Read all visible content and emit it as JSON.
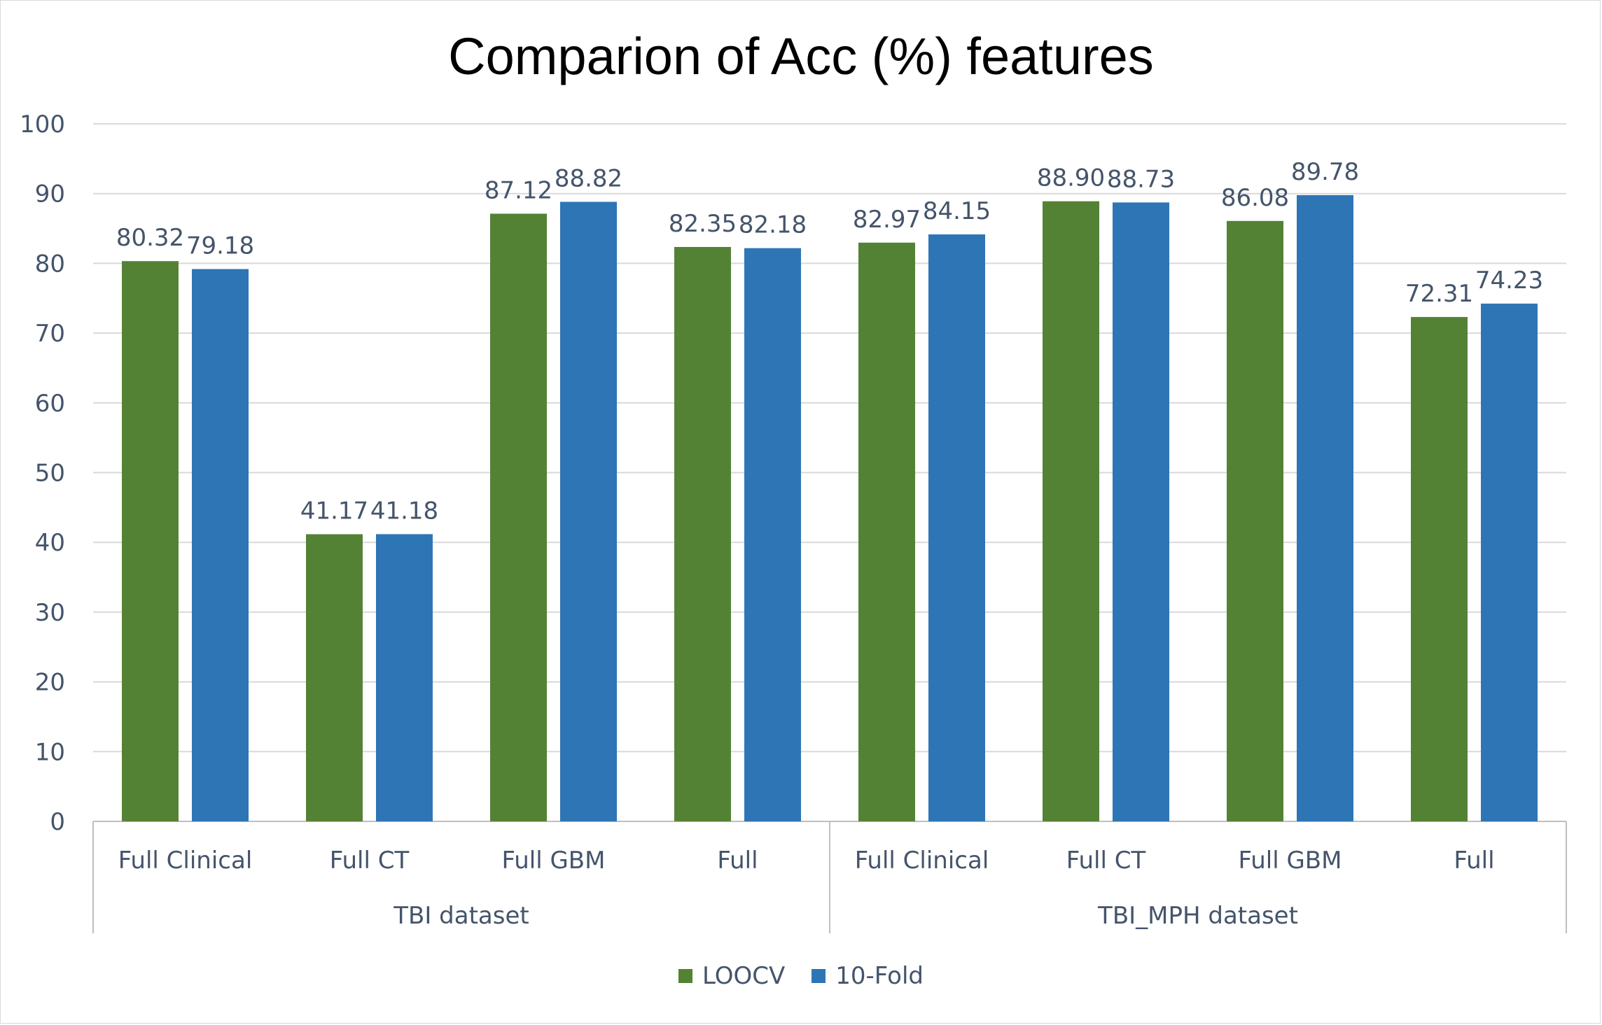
{
  "chart_data": {
    "type": "bar",
    "title": "Comparion of Acc (%) features",
    "groups": [
      {
        "label": "TBI dataset",
        "categories": [
          "Full Clinical",
          "Full CT",
          "Full GBM",
          "Full"
        ]
      },
      {
        "label": "TBI_MPH dataset",
        "categories": [
          "Full Clinical",
          "Full CT",
          "Full GBM",
          "Full"
        ]
      }
    ],
    "categories": [
      "Full Clinical",
      "Full CT",
      "Full GBM",
      "Full",
      "Full Clinical",
      "Full CT",
      "Full GBM",
      "Full"
    ],
    "series": [
      {
        "name": "LOOCV",
        "color": "#548235",
        "values": [
          80.32,
          41.17,
          87.12,
          82.35,
          82.97,
          88.9,
          86.08,
          72.31
        ],
        "labels": [
          "80.32",
          "41.17",
          "87.12",
          "82.35",
          "82.97",
          "88.90",
          "86.08",
          "72.31"
        ]
      },
      {
        "name": "10-Fold",
        "color": "#2e75b6",
        "values": [
          79.18,
          41.18,
          88.82,
          82.18,
          84.15,
          88.73,
          89.78,
          74.23
        ],
        "labels": [
          "79.18",
          "41.18",
          "88.82",
          "82.18",
          "84.15",
          "88.73",
          "89.78",
          "74.23"
        ]
      }
    ],
    "ylim": [
      0,
      100
    ],
    "yticks": [
      "0",
      "10",
      "20",
      "30",
      "40",
      "50",
      "60",
      "70",
      "80",
      "90",
      "100"
    ],
    "grid": true,
    "legend_position": "bottom"
  },
  "colors": {
    "gridline": "#d9d9d9",
    "axis": "#bfbfbf",
    "text": "#44546a"
  }
}
